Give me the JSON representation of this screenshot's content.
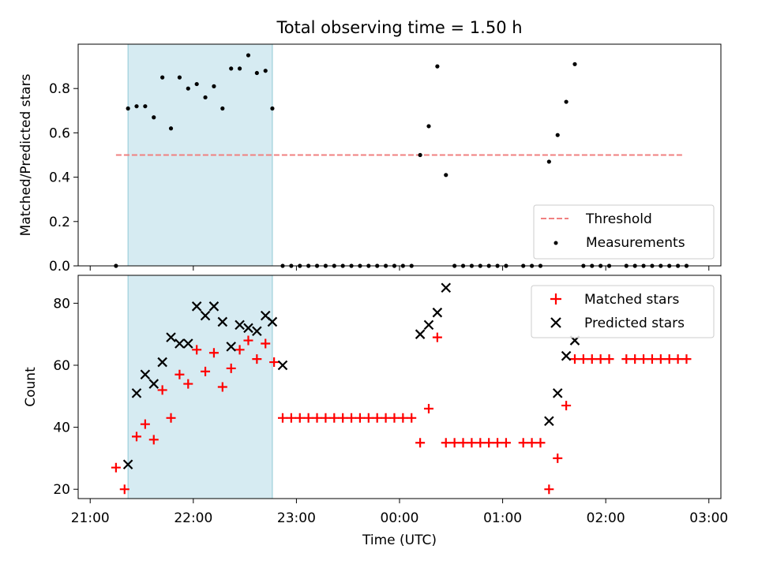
{
  "chart_data": [
    {
      "type": "scatter",
      "title": "Total observing time = 1.50 h",
      "ylabel": "Matched/Predicted stars",
      "xlabel": "",
      "xlim": [
        "21:00",
        "03:00"
      ],
      "ylim": [
        0,
        1.0
      ],
      "yticks": [
        "0.0",
        "0.2",
        "0.4",
        "0.6",
        "0.8"
      ],
      "shaded_region": [
        "21:22",
        "22:46"
      ],
      "threshold": {
        "name": "Threshold",
        "value": 0.5,
        "color": "#f08080",
        "from": "21:15",
        "to": "02:45"
      },
      "legend_position": "lower-right",
      "series": [
        {
          "name": "Measurements",
          "color": "#000000",
          "x": [
            "21:15",
            "21:22",
            "21:27",
            "21:32",
            "21:37",
            "21:42",
            "21:47",
            "21:52",
            "21:57",
            "22:02",
            "22:07",
            "22:12",
            "22:17",
            "22:22",
            "22:27",
            "22:32",
            "22:37",
            "22:42",
            "22:46",
            "22:52",
            "22:57",
            "23:02",
            "23:07",
            "23:12",
            "23:17",
            "23:22",
            "23:27",
            "23:32",
            "23:37",
            "23:42",
            "23:47",
            "23:52",
            "23:57",
            "00:02",
            "00:07",
            "00:12",
            "00:17",
            "00:22",
            "00:27",
            "00:32",
            "00:37",
            "00:42",
            "00:47",
            "00:52",
            "00:57",
            "01:02",
            "01:12",
            "01:17",
            "01:22",
            "01:27",
            "01:32",
            "01:37",
            "01:42",
            "01:47",
            "01:52",
            "01:57",
            "02:02",
            "02:12",
            "02:17",
            "02:22",
            "02:27",
            "02:32",
            "02:37",
            "02:42",
            "02:47"
          ],
          "y": [
            0.0,
            0.71,
            0.72,
            0.72,
            0.67,
            0.85,
            0.62,
            0.85,
            0.8,
            0.82,
            0.76,
            0.81,
            0.71,
            0.89,
            0.89,
            0.95,
            0.87,
            0.88,
            0.71,
            0.0,
            0.0,
            0.0,
            0.0,
            0.0,
            0.0,
            0.0,
            0.0,
            0.0,
            0.0,
            0.0,
            0.0,
            0.0,
            0.0,
            0.0,
            0.0,
            0.5,
            0.63,
            0.9,
            0.41,
            0.0,
            0.0,
            0.0,
            0.0,
            0.0,
            0.0,
            0.0,
            0.0,
            0.0,
            0.0,
            0.47,
            0.59,
            0.74,
            0.91,
            0.0,
            0.0,
            0.0,
            0.0,
            0.0,
            0.0,
            0.0,
            0.0,
            0.0,
            0.0,
            0.0,
            0.0
          ]
        }
      ]
    },
    {
      "type": "scatter",
      "title": "",
      "xlabel": "Time (UTC)",
      "ylabel": "Count",
      "xlim": [
        "21:00",
        "03:00"
      ],
      "ylim": [
        17,
        89
      ],
      "yticks": [
        "20",
        "40",
        "60",
        "80"
      ],
      "xticks": [
        "21:00",
        "22:00",
        "23:00",
        "00:00",
        "01:00",
        "02:00",
        "03:00"
      ],
      "shaded_region": [
        "21:22",
        "22:46"
      ],
      "legend_position": "upper-right",
      "series": [
        {
          "name": "Matched stars",
          "color": "#ff0000",
          "marker": "plus",
          "x": [
            "21:15",
            "21:20",
            "21:27",
            "21:32",
            "21:37",
            "21:42",
            "21:47",
            "21:52",
            "21:57",
            "22:02",
            "22:07",
            "22:12",
            "22:17",
            "22:22",
            "22:27",
            "22:32",
            "22:37",
            "22:42",
            "22:47",
            "22:52",
            "22:57",
            "23:02",
            "23:07",
            "23:12",
            "23:17",
            "23:22",
            "23:27",
            "23:32",
            "23:37",
            "23:42",
            "23:47",
            "23:52",
            "23:57",
            "00:02",
            "00:07",
            "00:12",
            "00:17",
            "00:22",
            "00:27",
            "00:32",
            "00:37",
            "00:42",
            "00:47",
            "00:52",
            "00:57",
            "01:02",
            "01:12",
            "01:17",
            "01:22",
            "01:27",
            "01:32",
            "01:37",
            "01:42",
            "01:47",
            "01:52",
            "01:57",
            "02:02",
            "02:12",
            "02:17",
            "02:22",
            "02:27",
            "02:32",
            "02:37",
            "02:42",
            "02:47"
          ],
          "y": [
            27,
            20,
            37,
            41,
            36,
            52,
            43,
            57,
            54,
            65,
            58,
            64,
            53,
            59,
            65,
            68,
            62,
            67,
            61,
            43,
            43,
            43,
            43,
            43,
            43,
            43,
            43,
            43,
            43,
            43,
            43,
            43,
            43,
            43,
            43,
            35,
            46,
            69,
            35,
            35,
            35,
            35,
            35,
            35,
            35,
            35,
            35,
            35,
            35,
            20,
            30,
            47,
            62,
            62,
            62,
            62,
            62,
            62,
            62,
            62,
            62,
            62,
            62,
            62,
            62
          ]
        },
        {
          "name": "Predicted stars",
          "color": "#000000",
          "marker": "x",
          "x": [
            "21:22",
            "21:27",
            "21:32",
            "21:37",
            "21:42",
            "21:47",
            "21:52",
            "21:57",
            "22:02",
            "22:07",
            "22:12",
            "22:17",
            "22:22",
            "22:27",
            "22:32",
            "22:37",
            "22:42",
            "22:46",
            "22:52",
            "00:12",
            "00:17",
            "00:22",
            "00:27",
            "01:27",
            "01:32",
            "01:37",
            "01:42"
          ],
          "y": [
            28,
            51,
            57,
            54,
            61,
            69,
            67,
            67,
            79,
            76,
            79,
            74,
            66,
            73,
            72,
            71,
            76,
            74,
            60,
            70,
            73,
            77,
            85,
            42,
            51,
            63,
            68
          ]
        }
      ]
    }
  ]
}
